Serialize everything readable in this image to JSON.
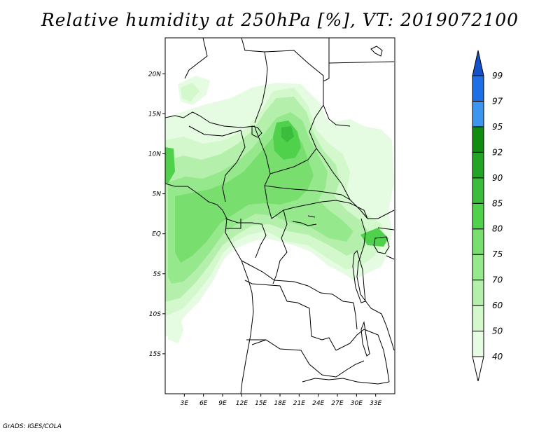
{
  "title": "Relative humidity at 250hPa [%], VT: 2019072100",
  "credit": "GrADS: IGES/COLA",
  "map": {
    "lon_range": [
      0,
      36
    ],
    "lat_range": [
      -20,
      24.5
    ],
    "x_ticks": [
      "3E",
      "6E",
      "9E",
      "12E",
      "15E",
      "18E",
      "21E",
      "24E",
      "27E",
      "30E",
      "33E"
    ],
    "y_ticks": [
      "20N",
      "15N",
      "10N",
      "5N",
      "EQ",
      "5S",
      "10S",
      "15S"
    ]
  },
  "colorbar": {
    "levels": [
      "40",
      "50",
      "60",
      "70",
      "75",
      "80",
      "85",
      "90",
      "92",
      "95",
      "97",
      "99"
    ],
    "colors": [
      "#ffffff",
      "#e6fce2",
      "#d2f8cc",
      "#b4f0ab",
      "#96e88c",
      "#78de6e",
      "#4fd14c",
      "#3cbc3c",
      "#24a424",
      "#108c10",
      "#3c96f0",
      "#1e6ee6",
      "#1450c8"
    ]
  }
}
